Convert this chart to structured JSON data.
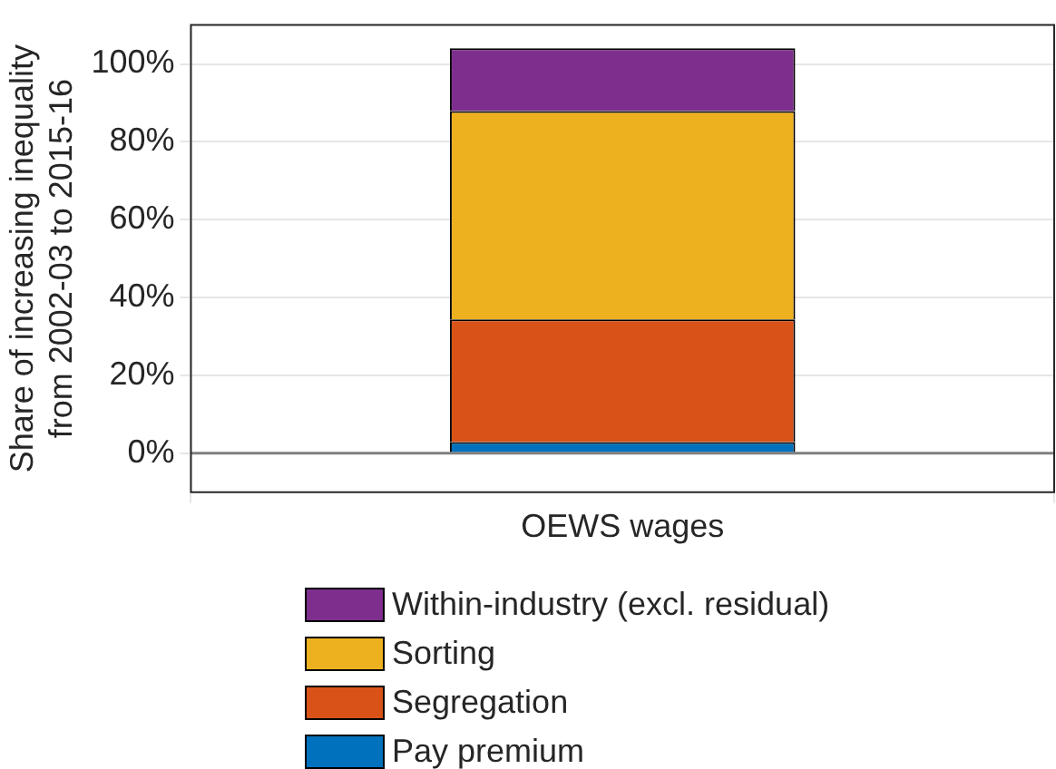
{
  "chart_data": {
    "type": "bar",
    "stacked": true,
    "ylabel": "Share of increasing inequality\nfrom 2002-03 to 2015-16",
    "categories": [
      "OEWS wages"
    ],
    "series": [
      {
        "name": "Pay premium",
        "color": "#0072bd",
        "values": [
          2.9
        ]
      },
      {
        "name": "Segregation",
        "color": "#d95319",
        "values": [
          31.5
        ]
      },
      {
        "name": "Sorting",
        "color": "#edb120",
        "values": [
          53.5
        ]
      },
      {
        "name": "Within-industry (excl. residual)",
        "color": "#7e2f8e",
        "values": [
          16.1
        ]
      }
    ],
    "ylim": [
      -10,
      110
    ],
    "yticks": [
      {
        "value": 0,
        "label": "0%"
      },
      {
        "value": 20,
        "label": "20%"
      },
      {
        "value": 40,
        "label": "40%"
      },
      {
        "value": 60,
        "label": "60%"
      },
      {
        "value": 80,
        "label": "80%"
      },
      {
        "value": 100,
        "label": "100%"
      }
    ],
    "grid": true,
    "legend": "bottom",
    "ref_lines": [
      {
        "axis": "y",
        "value": 0,
        "color": "#7f7f7f"
      }
    ]
  }
}
